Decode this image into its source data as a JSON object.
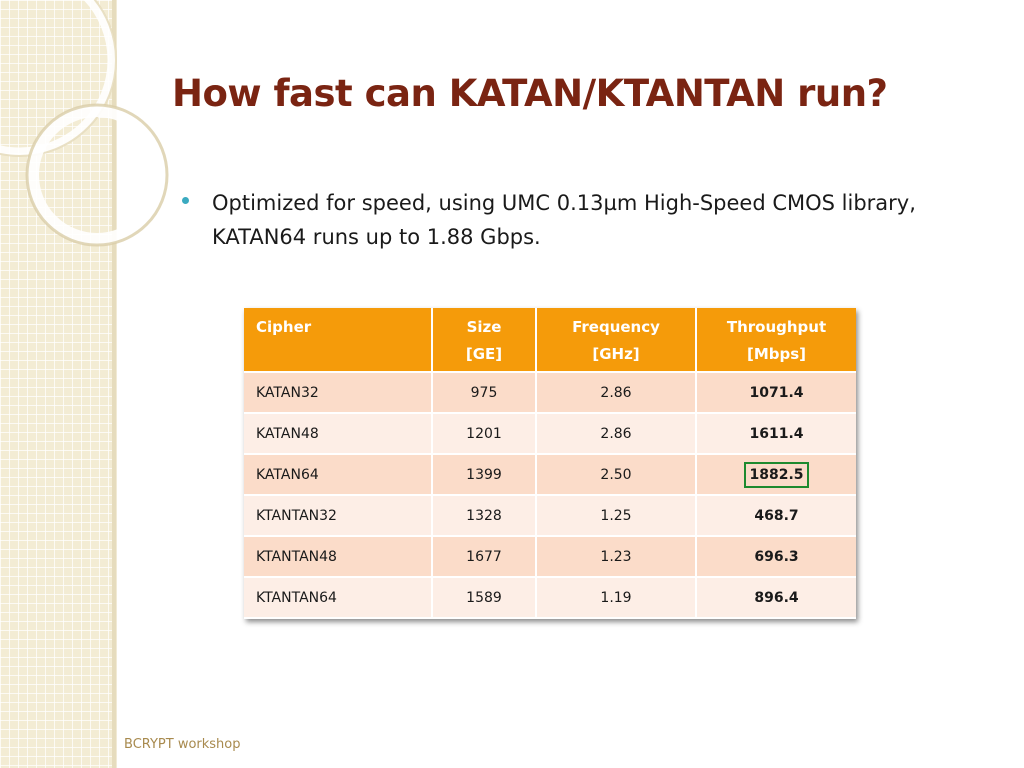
{
  "slide": {
    "title": "How fast can KATAN/KTANTAN run?",
    "bullet": "Optimized for speed, using UMC 0.13µm High-Speed CMOS library, KATAN64 runs up to 1.88 Gbps.",
    "footer": "BCRYPT workshop"
  },
  "table": {
    "headers": [
      {
        "line1": "Cipher",
        "line2": ""
      },
      {
        "line1": "Size",
        "line2": "[GE]"
      },
      {
        "line1": "Frequency",
        "line2": "[GHz]"
      },
      {
        "line1": "Throughput",
        "line2": "[Mbps]"
      }
    ],
    "rows": [
      {
        "cipher": "KATAN32",
        "size": "975",
        "frequency": "2.86",
        "throughput": "1071.4",
        "highlight": false
      },
      {
        "cipher": "KATAN48",
        "size": "1201",
        "frequency": "2.86",
        "throughput": "1611.4",
        "highlight": false
      },
      {
        "cipher": "KATAN64",
        "size": "1399",
        "frequency": "2.50",
        "throughput": "1882.5",
        "highlight": true
      },
      {
        "cipher": "KTANTAN32",
        "size": "1328",
        "frequency": "1.25",
        "throughput": "468.7",
        "highlight": false
      },
      {
        "cipher": "KTANTAN48",
        "size": "1677",
        "frequency": "1.23",
        "throughput": "696.3",
        "highlight": false
      },
      {
        "cipher": "KTANTAN64",
        "size": "1589",
        "frequency": "1.19",
        "throughput": "896.4",
        "highlight": false
      }
    ]
  },
  "colors": {
    "title": "#7a2412",
    "header_bg": "#f59b0a",
    "row_odd": "#fbdcc9",
    "row_even": "#fdeee6",
    "highlight_border": "#1e8a2e",
    "bullet": "#3aaac0",
    "footer": "#a88a4e"
  }
}
